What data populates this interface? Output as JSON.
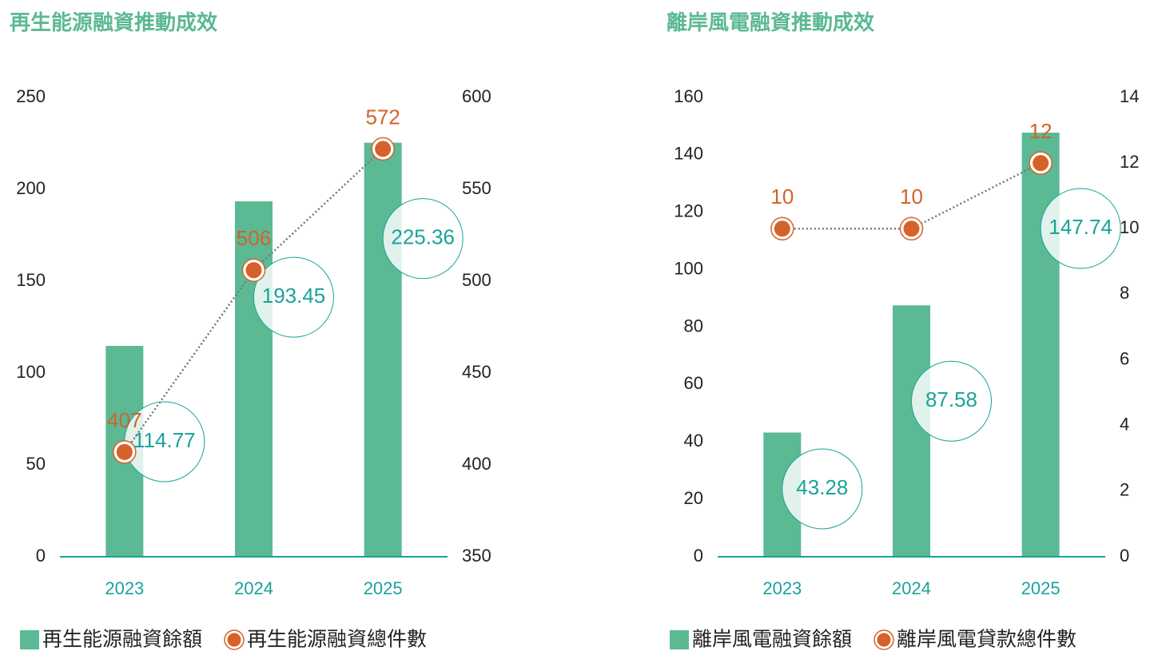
{
  "chart_data": [
    {
      "type": "bar",
      "title": "再生能源融資推動成效",
      "categories": [
        "2023",
        "2024",
        "2025"
      ],
      "series": [
        {
          "name": "再生能源融資餘額",
          "color": "#5bb994",
          "values": [
            114.77,
            193.45,
            225.36
          ]
        },
        {
          "name": "再生能源融資總件數",
          "color": "#d4622a",
          "values": [
            407,
            506,
            572
          ],
          "axis": "y2"
        }
      ],
      "ylim": [
        0,
        250
      ],
      "yticks": [
        0,
        50,
        100,
        150,
        200,
        250
      ],
      "y2lim": [
        350,
        600
      ],
      "y2ticks": [
        350,
        400,
        450,
        500,
        550,
        600
      ]
    },
    {
      "type": "bar",
      "title": "離岸風電融資推動成效",
      "categories": [
        "2023",
        "2024",
        "2025"
      ],
      "series": [
        {
          "name": "離岸風電融資餘額",
          "color": "#5bb994",
          "values": [
            43.28,
            87.58,
            147.74
          ]
        },
        {
          "name": "離岸風電貸款總件數",
          "color": "#d4622a",
          "values": [
            10,
            10,
            12
          ],
          "axis": "y2"
        }
      ],
      "ylim": [
        0,
        160
      ],
      "yticks": [
        0,
        20,
        40,
        60,
        80,
        100,
        120,
        140,
        160
      ],
      "y2lim": [
        0,
        14
      ],
      "y2ticks": [
        0,
        2,
        4,
        6,
        8,
        10,
        12,
        14
      ]
    }
  ]
}
